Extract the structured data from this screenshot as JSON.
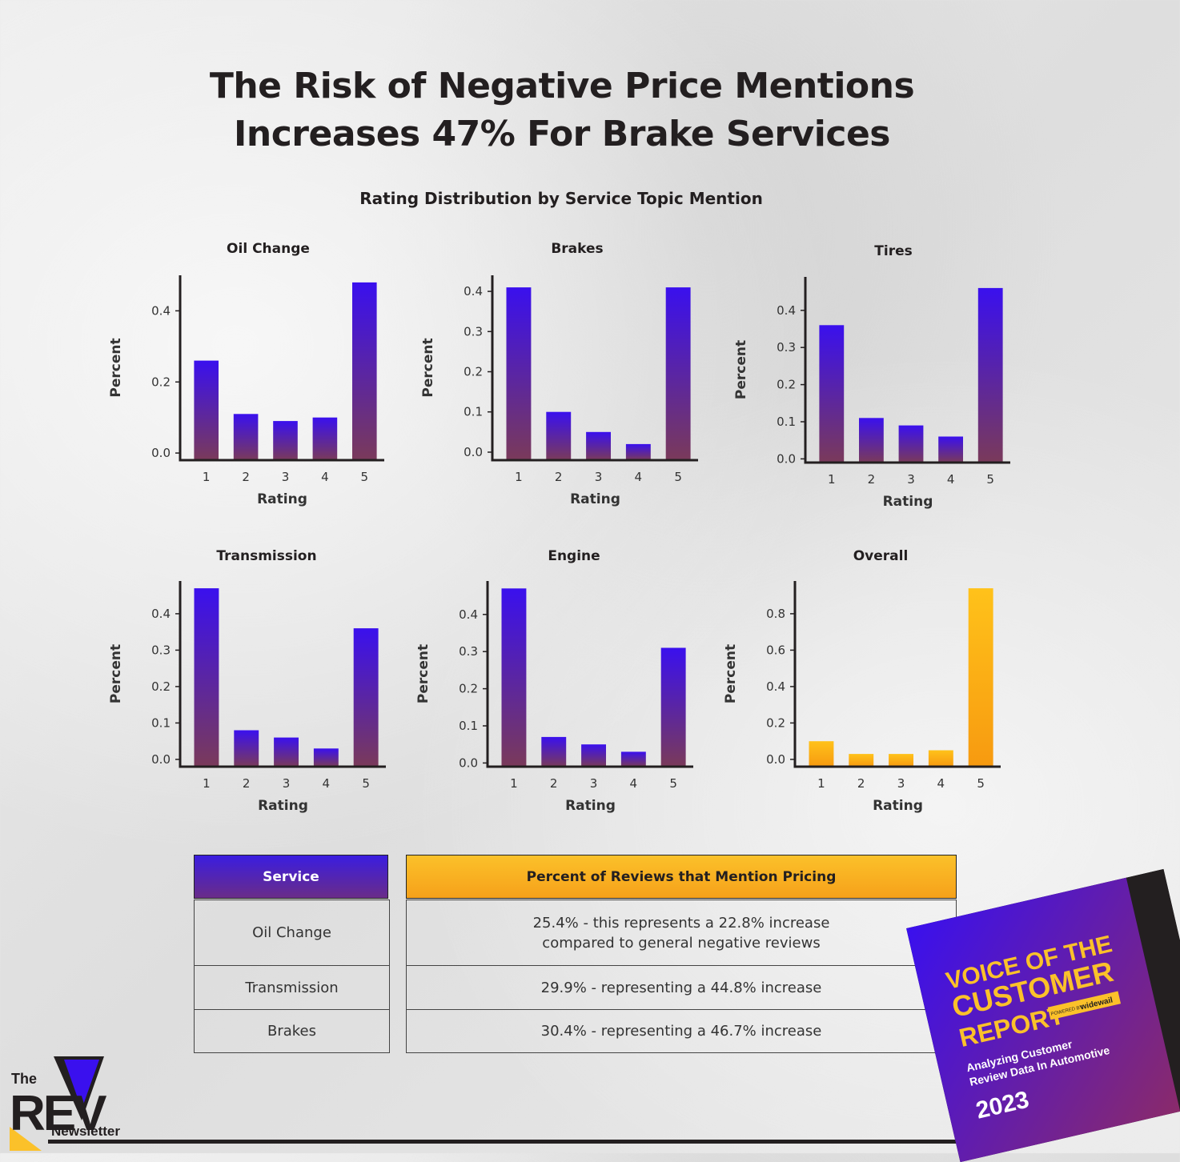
{
  "title": {
    "line1": "The Risk of Negative Price Mentions",
    "line2": "Increases 47% For Brake Services"
  },
  "subtitle": "Rating Distribution by Service Topic Mention",
  "colors": {
    "bar_top": "#3a10ee",
    "bar_bottom": "#7a3a5a",
    "overall_top": "#ffc21a",
    "overall_bottom": "#f79a10",
    "axis": "#231f20"
  },
  "chart_data": [
    {
      "type": "bar",
      "title": "Oil Change",
      "xlabel": "Rating",
      "ylabel": "Percent",
      "categories": [
        "1",
        "2",
        "3",
        "4",
        "5"
      ],
      "values": [
        0.26,
        0.11,
        0.09,
        0.1,
        0.48
      ],
      "ylim": [
        -0.02,
        0.5
      ],
      "yticks": [
        0.0,
        0.2,
        0.4
      ],
      "yticklabels": [
        "0.0",
        "0.2",
        "0.4"
      ]
    },
    {
      "type": "bar",
      "title": "Brakes",
      "xlabel": "Rating",
      "ylabel": "Percent",
      "categories": [
        "1",
        "2",
        "3",
        "4",
        "5"
      ],
      "values": [
        0.41,
        0.1,
        0.05,
        0.02,
        0.41
      ],
      "ylim": [
        -0.02,
        0.44
      ],
      "yticks": [
        0.0,
        0.1,
        0.2,
        0.3,
        0.4
      ],
      "yticklabels": [
        "0.0",
        "0.1",
        "0.2",
        "0.3",
        "0.4"
      ]
    },
    {
      "type": "bar",
      "title": "Tires",
      "xlabel": "Rating",
      "ylabel": "Percent",
      "categories": [
        "1",
        "2",
        "3",
        "4",
        "5"
      ],
      "values": [
        0.36,
        0.11,
        0.09,
        0.06,
        0.46
      ],
      "ylim": [
        -0.01,
        0.49
      ],
      "yticks": [
        0.0,
        0.1,
        0.2,
        0.3,
        0.4
      ],
      "yticklabels": [
        "0.0",
        "0.1",
        "0.2",
        "0.3",
        "0.4"
      ]
    },
    {
      "type": "bar",
      "title": "Transmission",
      "xlabel": "Rating",
      "ylabel": "Percent",
      "categories": [
        "1",
        "2",
        "3",
        "4",
        "5"
      ],
      "values": [
        0.47,
        0.08,
        0.06,
        0.03,
        0.36
      ],
      "ylim": [
        -0.02,
        0.49
      ],
      "yticks": [
        0.0,
        0.1,
        0.2,
        0.3,
        0.4
      ],
      "yticklabels": [
        "0.0",
        "0.1",
        "0.2",
        "0.3",
        "0.4"
      ]
    },
    {
      "type": "bar",
      "title": "Engine",
      "xlabel": "Rating",
      "ylabel": "Percent",
      "categories": [
        "1",
        "2",
        "3",
        "4",
        "5"
      ],
      "values": [
        0.47,
        0.07,
        0.05,
        0.03,
        0.31
      ],
      "ylim": [
        -0.01,
        0.49
      ],
      "yticks": [
        0.0,
        0.1,
        0.2,
        0.3,
        0.4
      ],
      "yticklabels": [
        "0.0",
        "0.1",
        "0.2",
        "0.3",
        "0.4"
      ]
    },
    {
      "type": "bar",
      "title": "Overall",
      "xlabel": "Rating",
      "ylabel": "Percent",
      "categories": [
        "1",
        "2",
        "3",
        "4",
        "5"
      ],
      "values": [
        0.1,
        0.03,
        0.03,
        0.05,
        0.94
      ],
      "ylim": [
        -0.04,
        0.98
      ],
      "yticks": [
        0.0,
        0.2,
        0.4,
        0.6,
        0.8
      ],
      "yticklabels": [
        "0.0",
        "0.2",
        "0.4",
        "0.6",
        "0.8"
      ],
      "palette": "overall"
    }
  ],
  "table": {
    "headers": [
      "Service",
      "Percent of Reviews that Mention Pricing"
    ],
    "rows": [
      {
        "service": "Oil Change",
        "line1": "25.4% - this represents a 22.8% increase",
        "line2": "compared to general negative reviews"
      },
      {
        "service": "Transmission",
        "line1": "29.9% - representing a 44.8% increase",
        "line2": ""
      },
      {
        "service": "Brakes",
        "line1": "30.4% - representing a 46.7% increase",
        "line2": ""
      }
    ]
  },
  "logo": {
    "the": "The",
    "rev": "REV",
    "newsletter": "Newsletter"
  },
  "report": {
    "heading1": "VOICE OF THE",
    "heading2": "CUSTOMER",
    "heading3": "REPORT",
    "powered": "POWERED BY",
    "brand": "widewail",
    "sub1": "Analyzing Customer",
    "sub2": "Review Data In Automotive",
    "year": "2023"
  }
}
